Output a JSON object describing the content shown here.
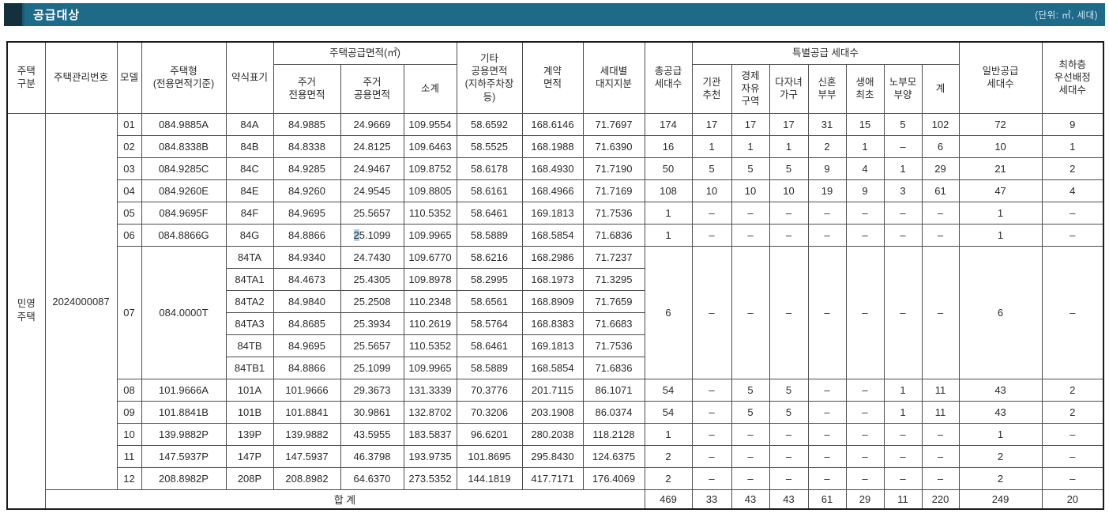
{
  "title_bar": {
    "title": "공급대상",
    "unit_note": "(단위: ㎡, 세대)"
  },
  "colors": {
    "bar": "#1d6a89",
    "bar_accent": "#15303d",
    "selection_highlight": "#aed2ec"
  },
  "header": {
    "house_class": "주택\n구분",
    "mgmt_no": "주택관리번호",
    "model": "모델",
    "house_type": "주택형\n(전용면적기준)",
    "notation": "약식표기",
    "supply_area_group": "주택공급면적(㎡)",
    "exclusive": "주거\n전용면적",
    "common": "주거\n공용면적",
    "subtotal": "소계",
    "other_common": "기타\n공용면적\n(지하주차장\n등)",
    "contract": "계약\n면적",
    "land_share": "세대별\n대지지분",
    "total_units": "총공급\n세대수",
    "special_group": "특별공급 세대수",
    "special_cols": [
      "기관\n추천",
      "경제\n자유\n구역",
      "다자녀\n가구",
      "신혼\n부부",
      "생애\n최초",
      "노부모\n부양",
      "계"
    ],
    "general": "일반공급\n세대수",
    "lowest": "최하층\n우선배정\n세대수"
  },
  "body": {
    "house_class": "민영\n주택",
    "mgmt_no": "2024000087",
    "rows_top": [
      {
        "model": "01",
        "type": "084.9885A",
        "notation": "84A",
        "exclusive": "84.9885",
        "common": "24.9669",
        "subtotal": "109.9554",
        "other": "58.6592",
        "contract": "168.6146",
        "land": "71.7697",
        "total": "174",
        "special": [
          "17",
          "17",
          "17",
          "31",
          "15",
          "5",
          "102"
        ],
        "general": "72",
        "lowest": "9"
      },
      {
        "model": "02",
        "type": "084.8338B",
        "notation": "84B",
        "exclusive": "84.8338",
        "common": "24.8125",
        "subtotal": "109.6463",
        "other": "58.5525",
        "contract": "168.1988",
        "land": "71.6390",
        "total": "16",
        "special": [
          "1",
          "1",
          "1",
          "2",
          "1",
          "–",
          "6"
        ],
        "general": "10",
        "lowest": "1"
      },
      {
        "model": "03",
        "type": "084.9285C",
        "notation": "84C",
        "exclusive": "84.9285",
        "common": "24.9467",
        "subtotal": "109.8752",
        "other": "58.6178",
        "contract": "168.4930",
        "land": "71.7190",
        "total": "50",
        "special": [
          "5",
          "5",
          "5",
          "9",
          "4",
          "1",
          "29"
        ],
        "general": "21",
        "lowest": "2"
      },
      {
        "model": "04",
        "type": "084.9260E",
        "notation": "84E",
        "exclusive": "84.9260",
        "common": "24.9545",
        "subtotal": "109.8805",
        "other": "58.6161",
        "contract": "168.4966",
        "land": "71.7169",
        "total": "108",
        "special": [
          "10",
          "10",
          "10",
          "19",
          "9",
          "3",
          "61"
        ],
        "general": "47",
        "lowest": "4"
      },
      {
        "model": "05",
        "type": "084.9695F",
        "notation": "84F",
        "exclusive": "84.9695",
        "common": "25.5657",
        "subtotal": "110.5352",
        "other": "58.6461",
        "contract": "169.1813",
        "land": "71.7536",
        "total": "1",
        "special": [
          "–",
          "–",
          "–",
          "–",
          "–",
          "–",
          "–"
        ],
        "general": "1",
        "lowest": "–"
      },
      {
        "model": "06",
        "type": "084.8866G",
        "notation": "84G",
        "exclusive": "84.8866",
        "common": "25.1099",
        "common_hl": 1,
        "subtotal": "109.9965",
        "other": "58.5889",
        "contract": "168.5854",
        "land": "71.6836",
        "total": "1",
        "special": [
          "–",
          "–",
          "–",
          "–",
          "–",
          "–",
          "–"
        ],
        "general": "1",
        "lowest": "–"
      }
    ],
    "group_row": {
      "model": "07",
      "type": "084.0000T",
      "total": "6",
      "special": [
        "–",
        "–",
        "–",
        "–",
        "–",
        "–",
        "–"
      ],
      "general": "6",
      "lowest": "–",
      "sub_rows": [
        {
          "notation": "84TA",
          "exclusive": "84.9340",
          "common": "24.7430",
          "subtotal": "109.6770",
          "other": "58.6216",
          "contract": "168.2986",
          "land": "71.7237"
        },
        {
          "notation": "84TA1",
          "exclusive": "84.4673",
          "common": "25.4305",
          "subtotal": "109.8978",
          "other": "58.2995",
          "contract": "168.1973",
          "land": "71.3295"
        },
        {
          "notation": "84TA2",
          "exclusive": "84.9840",
          "common": "25.2508",
          "subtotal": "110.2348",
          "other": "58.6561",
          "contract": "168.8909",
          "land": "71.7659"
        },
        {
          "notation": "84TA3",
          "exclusive": "84.8685",
          "common": "25.3934",
          "subtotal": "110.2619",
          "other": "58.5764",
          "contract": "168.8383",
          "land": "71.6683"
        },
        {
          "notation": "84TB",
          "exclusive": "84.9695",
          "common": "25.5657",
          "subtotal": "110.5352",
          "other": "58.6461",
          "contract": "169.1813",
          "land": "71.7536"
        },
        {
          "notation": "84TB1",
          "exclusive": "84.8866",
          "common": "25.1099",
          "subtotal": "109.9965",
          "other": "58.5889",
          "contract": "168.5854",
          "land": "71.6836"
        }
      ]
    },
    "rows_bottom": [
      {
        "model": "08",
        "type": "101.9666A",
        "notation": "101A",
        "exclusive": "101.9666",
        "common": "29.3673",
        "subtotal": "131.3339",
        "other": "70.3776",
        "contract": "201.7115",
        "land": "86.1071",
        "total": "54",
        "special": [
          "–",
          "5",
          "5",
          "–",
          "–",
          "1",
          "11"
        ],
        "general": "43",
        "lowest": "2"
      },
      {
        "model": "09",
        "type": "101.8841B",
        "notation": "101B",
        "exclusive": "101.8841",
        "common": "30.9861",
        "subtotal": "132.8702",
        "other": "70.3206",
        "contract": "203.1908",
        "land": "86.0374",
        "total": "54",
        "special": [
          "–",
          "5",
          "5",
          "–",
          "–",
          "1",
          "11"
        ],
        "general": "43",
        "lowest": "2"
      },
      {
        "model": "10",
        "type": "139.9882P",
        "notation": "139P",
        "exclusive": "139.9882",
        "common": "43.5955",
        "subtotal": "183.5837",
        "other": "96.6201",
        "contract": "280.2038",
        "land": "118.2128",
        "total": "1",
        "special": [
          "–",
          "–",
          "–",
          "–",
          "–",
          "–",
          "–"
        ],
        "general": "1",
        "lowest": "–"
      },
      {
        "model": "11",
        "type": "147.5937P",
        "notation": "147P",
        "exclusive": "147.5937",
        "common": "46.3798",
        "subtotal": "193.9735",
        "other": "101.8695",
        "contract": "295.8430",
        "land": "124.6375",
        "total": "2",
        "special": [
          "–",
          "–",
          "–",
          "–",
          "–",
          "–",
          "–"
        ],
        "general": "2",
        "lowest": "–"
      },
      {
        "model": "12",
        "type": "208.8982P",
        "notation": "208P",
        "exclusive": "208.8982",
        "common": "64.6370",
        "subtotal": "273.5352",
        "other": "144.1819",
        "contract": "417.7171",
        "land": "176.4069",
        "total": "2",
        "special": [
          "–",
          "–",
          "–",
          "–",
          "–",
          "–",
          "–"
        ],
        "general": "2",
        "lowest": "–"
      }
    ],
    "total_row": {
      "label": "합 계",
      "total": "469",
      "special": [
        "33",
        "43",
        "43",
        "61",
        "29",
        "11",
        "220"
      ],
      "general": "249",
      "lowest": "20"
    }
  }
}
